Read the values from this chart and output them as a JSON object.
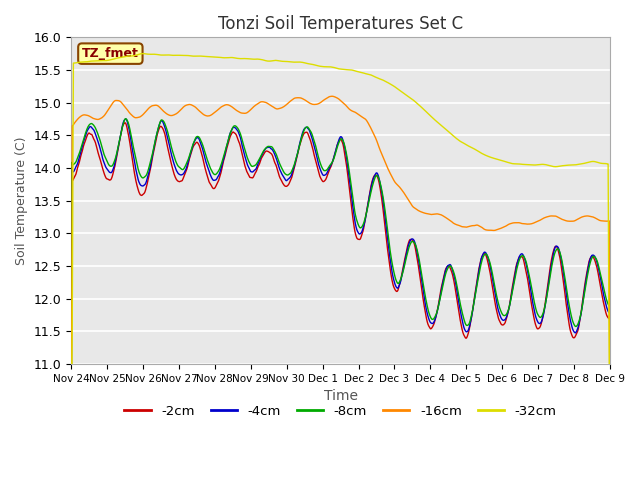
{
  "title": "Tonzi Soil Temperatures Set C",
  "xlabel": "Time",
  "ylabel": "Soil Temperature (C)",
  "ylim": [
    11.0,
    16.0
  ],
  "yticks": [
    11.0,
    11.5,
    12.0,
    12.5,
    13.0,
    13.5,
    14.0,
    14.5,
    15.0,
    15.5,
    16.0
  ],
  "series_colors": [
    "#cc0000",
    "#0000cc",
    "#00aa00",
    "#ff8800",
    "#dddd00"
  ],
  "series_labels": [
    "-2cm",
    "-4cm",
    "-8cm",
    "-16cm",
    "-32cm"
  ],
  "legend_label": "TZ_fmet",
  "xtick_labels": [
    "Nov 24",
    "Nov 25",
    "Nov 26",
    "Nov 27",
    "Nov 28",
    "Nov 29",
    "Nov 30",
    "Dec 1",
    "Dec 2",
    "Dec 3",
    "Dec 4",
    "Dec 5",
    "Dec 6",
    "Dec 7",
    "Dec 8",
    "Dec 9"
  ],
  "line_width": 1.0,
  "fig_bg": "#ffffff",
  "ax_bg": "#e8e8e8"
}
